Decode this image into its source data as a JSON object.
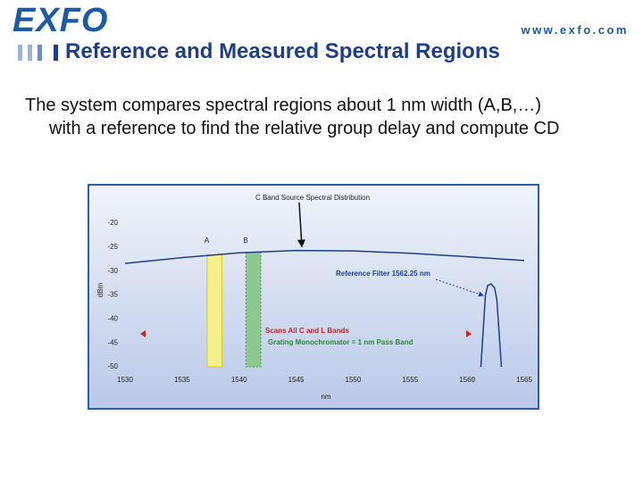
{
  "header": {
    "logo": "EXFO",
    "url": "www.exfo.com",
    "title": "Reference and Measured Spectral Regions"
  },
  "body": {
    "text": "The system compares spectral regions about 1 nm width (A,B,…) with a reference to find the relative group delay and compute CD"
  },
  "chart_data": {
    "type": "line",
    "title": "C Band Source Spectral Distribution",
    "x_label": "nm",
    "y_label": "dBm",
    "xlim": [
      1530,
      1565
    ],
    "xticks": [
      1530,
      1535,
      1540,
      1545,
      1550,
      1555,
      1560,
      1565
    ],
    "ylim": [
      -50,
      -20
    ],
    "yticks": [
      -20,
      -25,
      -30,
      -35,
      -40,
      -45,
      -50
    ],
    "series": [
      {
        "color": "#1f3d8c",
        "x": [
          1530,
          1535,
          1540,
          1545,
          1550,
          1555,
          1560,
          1565
        ],
        "values": [
          -28.4,
          -27.2,
          -26.2,
          -25.7,
          -25.8,
          -26.3,
          -27,
          -27.8
        ]
      },
      {
        "color": "#1f3d8c",
        "x": [
          1561.2,
          1561.6,
          1561.8,
          1562.1,
          1562.4,
          1562.6,
          1563.0
        ],
        "values": [
          -50,
          -35,
          -33,
          -32.7,
          -33.5,
          -36,
          -50
        ]
      }
    ],
    "bands": [
      {
        "name": "A",
        "x": [
          1537.2,
          1538.5
        ],
        "color": "#f4f08a"
      },
      {
        "name": "B",
        "x": [
          1540.6,
          1541.9
        ],
        "color": "#8cc890"
      }
    ],
    "annotations": [
      "Reference Filter 1562.25 nm",
      "Scans All C and L Bands",
      "Grating Monochromator = 1 nm Pass Band"
    ]
  }
}
